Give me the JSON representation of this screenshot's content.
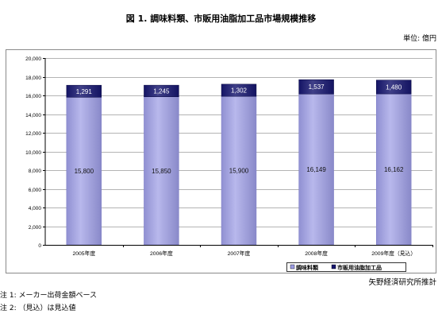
{
  "chart_data": {
    "type": "bar",
    "stacked": true,
    "title": "図 1. 調味料類、市販用油脂加工品市場規模推移",
    "unit": "単位: 億円",
    "categories": [
      "2005年度",
      "2006年度",
      "2007年度",
      "2008年度",
      "2009年度（見込）"
    ],
    "series": [
      {
        "name": "調味料類",
        "values": [
          15800,
          15850,
          15900,
          16149,
          16162
        ],
        "color": "#9c9ce4"
      },
      {
        "name": "市販用油脂加工品",
        "values": [
          1291,
          1245,
          1302,
          1537,
          1480
        ],
        "color": "#16166e"
      }
    ],
    "ylim": [
      0,
      20000
    ],
    "yticks": [
      0,
      2000,
      4000,
      6000,
      8000,
      10000,
      12000,
      14000,
      16000,
      18000,
      20000
    ],
    "grid": true,
    "data_labels": true,
    "legend": "bottom-right"
  },
  "footer": {
    "source": "矢野経済研究所推計",
    "notes": [
      "注 1: メーカー出荷金額ベース",
      "注 2: （見込）は見込値"
    ]
  }
}
